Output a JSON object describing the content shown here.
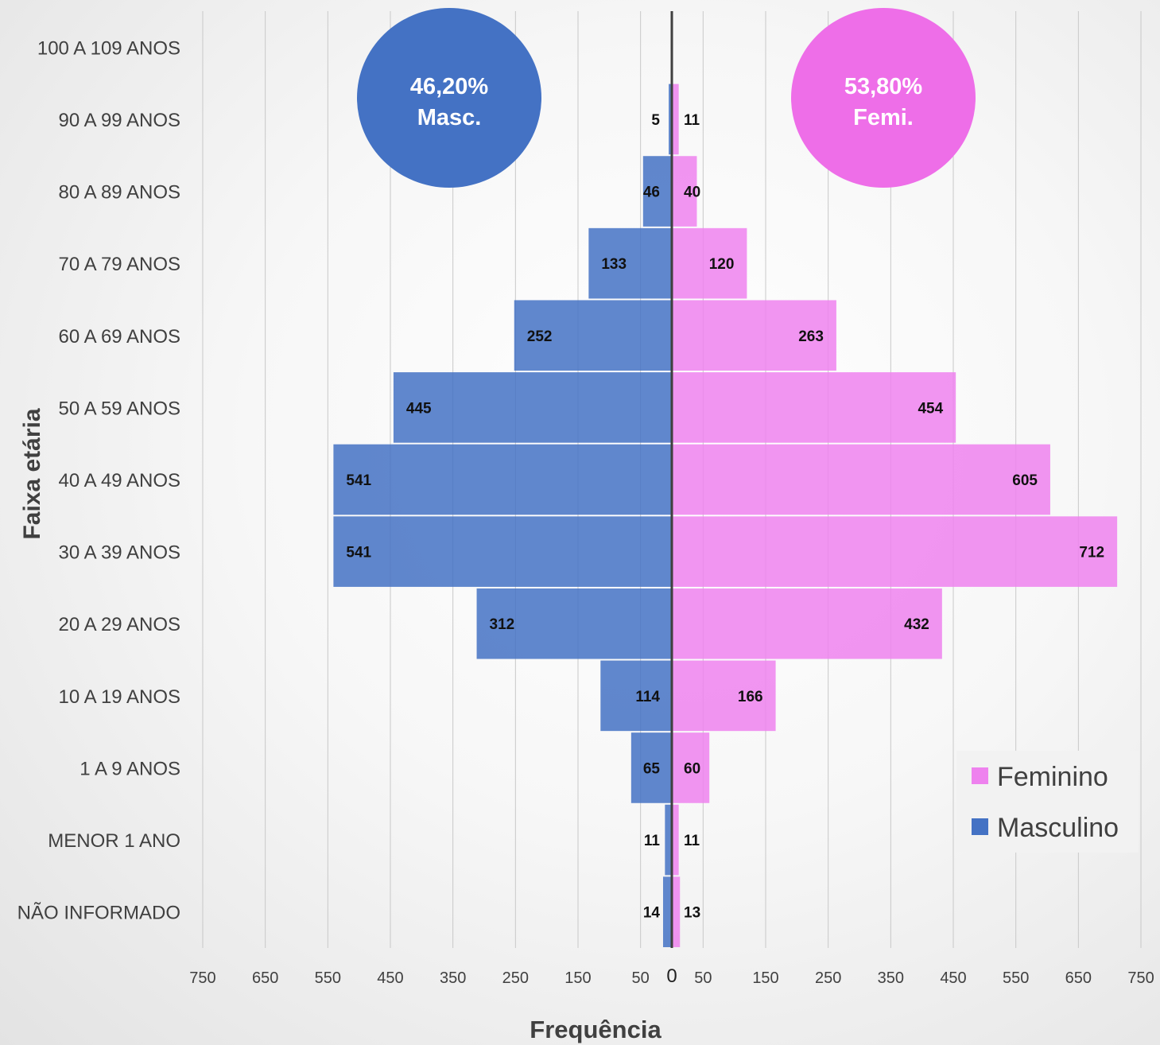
{
  "chart_data": {
    "type": "bar",
    "orientation": "horizontal",
    "categories": [
      "NÃO INFORMADO",
      "MENOR 1 ANO",
      "1 A 9 ANOS",
      "10 A 19 ANOS",
      "20 A 29 ANOS",
      "30 A 39 ANOS",
      "40 A 49 ANOS",
      "50 A 59 ANOS",
      "60 A 69 ANOS",
      "70 A 79 ANOS",
      "80 A 89 ANOS",
      "90 A 99 ANOS",
      "100 A 109 ANOS"
    ],
    "series": [
      {
        "name": "Masculino",
        "color": "#4472C4",
        "values": [
          14,
          11,
          65,
          114,
          312,
          541,
          541,
          445,
          252,
          133,
          46,
          5,
          null
        ]
      },
      {
        "name": "Feminino",
        "color": "#EE82EE",
        "values": [
          13,
          11,
          60,
          166,
          432,
          712,
          605,
          454,
          263,
          120,
          40,
          11,
          null
        ]
      }
    ],
    "xlabel": "Frequência",
    "ylabel": "Faixa etária",
    "xlim": [
      -750,
      750
    ],
    "left_ticks": [
      "750",
      "650",
      "550",
      "450",
      "350",
      "250",
      "150",
      "50"
    ],
    "right_ticks": [
      "50",
      "150",
      "250",
      "350",
      "450",
      "550",
      "650",
      "750"
    ],
    "zero_label": "0",
    "grid": true,
    "legend_position": "bottom-right",
    "legend": [
      {
        "label": "Feminino",
        "color": "#EE82EE"
      },
      {
        "label": "Masculino",
        "color": "#4472C4"
      }
    ],
    "annotations": [
      {
        "side": "male",
        "percent": "46,20%",
        "label": "Masc.",
        "color": "#4472C4"
      },
      {
        "side": "female",
        "percent": "53,80%",
        "label": "Femi.",
        "color": "#EE6EE8"
      }
    ]
  }
}
